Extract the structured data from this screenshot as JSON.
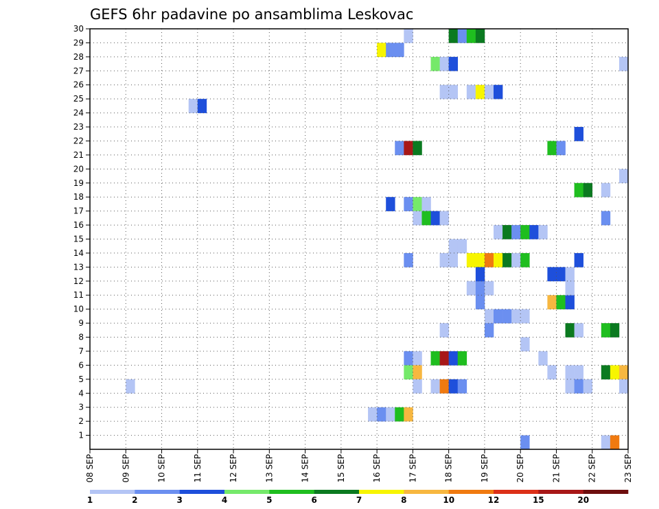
{
  "chart_data": {
    "type": "heatmap",
    "title": "GEFS 6hr padavine po ansamblima Leskovac",
    "xlabel": "",
    "ylabel": "",
    "x_tick_labels": [
      "08 SEP",
      "09 SEP",
      "10 SEP",
      "11 SEP",
      "12 SEP",
      "13 SEP",
      "14 SEP",
      "15 SEP",
      "16 SEP",
      "17 SEP",
      "18 SEP",
      "19 SEP",
      "20 SEP",
      "21 SEP",
      "22 SEP",
      "23 SEP"
    ],
    "x_unit": "6-hour steps from 08 SEP",
    "y_tick_labels": [
      "1",
      "2",
      "3",
      "4",
      "5",
      "6",
      "7",
      "8",
      "9",
      "10",
      "11",
      "12",
      "13",
      "14",
      "15",
      "16",
      "17",
      "18",
      "19",
      "20",
      "21",
      "22",
      "23",
      "24",
      "25",
      "26",
      "27",
      "28",
      "29",
      "30"
    ],
    "ylim": [
      0,
      30
    ],
    "grid": true,
    "colorbar": {
      "labels": [
        "1",
        "2",
        "3",
        "4",
        "5",
        "6",
        "7",
        "8",
        "10",
        "12",
        "15",
        "20"
      ],
      "colors": [
        "#b4c5f5",
        "#6b8ff0",
        "#1e4fdb",
        "#75e96a",
        "#1fbe1f",
        "#0b7a20",
        "#f7f500",
        "#f7b740",
        "#f07a10",
        "#dc3018",
        "#a81818",
        "#6e0e0e"
      ]
    },
    "cells": [
      {
        "t": 4,
        "m": 4,
        "c": 0
      },
      {
        "t": 11,
        "m": 24,
        "c": 0
      },
      {
        "t": 12,
        "m": 24,
        "c": 2
      },
      {
        "t": 31,
        "m": 2,
        "c": 0
      },
      {
        "t": 32,
        "m": 2,
        "c": 1
      },
      {
        "t": 33,
        "m": 2,
        "c": 0
      },
      {
        "t": 34,
        "m": 2,
        "c": 4
      },
      {
        "t": 35,
        "m": 2,
        "c": 7
      },
      {
        "t": 32,
        "m": 28,
        "c": 6
      },
      {
        "t": 33,
        "m": 28,
        "c": 1
      },
      {
        "t": 34,
        "m": 28,
        "c": 1
      },
      {
        "t": 33,
        "m": 17,
        "c": 2
      },
      {
        "t": 34,
        "m": 21,
        "c": 1
      },
      {
        "t": 35,
        "m": 21,
        "c": 10
      },
      {
        "t": 36,
        "m": 21,
        "c": 5
      },
      {
        "t": 35,
        "m": 29,
        "c": 0
      },
      {
        "t": 35,
        "m": 17,
        "c": 1
      },
      {
        "t": 36,
        "m": 17,
        "c": 3
      },
      {
        "t": 37,
        "m": 17,
        "c": 0
      },
      {
        "t": 36,
        "m": 16,
        "c": 0
      },
      {
        "t": 37,
        "m": 16,
        "c": 4
      },
      {
        "t": 38,
        "m": 16,
        "c": 2
      },
      {
        "t": 39,
        "m": 16,
        "c": 0
      },
      {
        "t": 35,
        "m": 13,
        "c": 1
      },
      {
        "t": 35,
        "m": 6,
        "c": 1
      },
      {
        "t": 36,
        "m": 6,
        "c": 0
      },
      {
        "t": 35,
        "m": 5,
        "c": 3
      },
      {
        "t": 36,
        "m": 5,
        "c": 7
      },
      {
        "t": 36,
        "m": 4,
        "c": 0
      },
      {
        "t": 38,
        "m": 27,
        "c": 3
      },
      {
        "t": 39,
        "m": 27,
        "c": 0
      },
      {
        "t": 40,
        "m": 27,
        "c": 2
      },
      {
        "t": 39,
        "m": 25,
        "c": 0
      },
      {
        "t": 40,
        "m": 25,
        "c": 0
      },
      {
        "t": 40,
        "m": 14,
        "c": 0
      },
      {
        "t": 41,
        "m": 14,
        "c": 0
      },
      {
        "t": 39,
        "m": 13,
        "c": 0
      },
      {
        "t": 40,
        "m": 13,
        "c": 0
      },
      {
        "t": 38,
        "m": 6,
        "c": 4
      },
      {
        "t": 39,
        "m": 6,
        "c": 10
      },
      {
        "t": 40,
        "m": 6,
        "c": 2
      },
      {
        "t": 41,
        "m": 6,
        "c": 4
      },
      {
        "t": 38,
        "m": 4,
        "c": 0
      },
      {
        "t": 39,
        "m": 4,
        "c": 8
      },
      {
        "t": 40,
        "m": 4,
        "c": 2
      },
      {
        "t": 41,
        "m": 4,
        "c": 1
      },
      {
        "t": 39,
        "m": 8,
        "c": 0
      },
      {
        "t": 40,
        "m": 29,
        "c": 5
      },
      {
        "t": 41,
        "m": 29,
        "c": 1
      },
      {
        "t": 42,
        "m": 29,
        "c": 4
      },
      {
        "t": 43,
        "m": 29,
        "c": 5
      },
      {
        "t": 42,
        "m": 25,
        "c": 0
      },
      {
        "t": 43,
        "m": 25,
        "c": 6
      },
      {
        "t": 44,
        "m": 25,
        "c": 0
      },
      {
        "t": 45,
        "m": 25,
        "c": 2
      },
      {
        "t": 42,
        "m": 13,
        "c": 6
      },
      {
        "t": 43,
        "m": 13,
        "c": 6
      },
      {
        "t": 44,
        "m": 13,
        "c": 8
      },
      {
        "t": 45,
        "m": 13,
        "c": 6
      },
      {
        "t": 46,
        "m": 13,
        "c": 5
      },
      {
        "t": 47,
        "m": 13,
        "c": 0
      },
      {
        "t": 48,
        "m": 13,
        "c": 4
      },
      {
        "t": 42,
        "m": 11,
        "c": 0
      },
      {
        "t": 43,
        "m": 11,
        "c": 1
      },
      {
        "t": 44,
        "m": 11,
        "c": 0
      },
      {
        "t": 43,
        "m": 12,
        "c": 2
      },
      {
        "t": 43,
        "m": 10,
        "c": 1
      },
      {
        "t": 44,
        "m": 9,
        "c": 0
      },
      {
        "t": 45,
        "m": 9,
        "c": 1
      },
      {
        "t": 46,
        "m": 9,
        "c": 1
      },
      {
        "t": 47,
        "m": 9,
        "c": 0
      },
      {
        "t": 48,
        "m": 9,
        "c": 0
      },
      {
        "t": 44,
        "m": 8,
        "c": 1
      },
      {
        "t": 45,
        "m": 15,
        "c": 0
      },
      {
        "t": 46,
        "m": 15,
        "c": 5
      },
      {
        "t": 47,
        "m": 15,
        "c": 1
      },
      {
        "t": 48,
        "m": 15,
        "c": 4
      },
      {
        "t": 49,
        "m": 15,
        "c": 2
      },
      {
        "t": 50,
        "m": 15,
        "c": 0
      },
      {
        "t": 48,
        "m": 7,
        "c": 0
      },
      {
        "t": 48,
        "m": 0,
        "c": 1
      },
      {
        "t": 50,
        "m": 6,
        "c": 0
      },
      {
        "t": 51,
        "m": 5,
        "c": 0
      },
      {
        "t": 51,
        "m": 21,
        "c": 4
      },
      {
        "t": 52,
        "m": 21,
        "c": 1
      },
      {
        "t": 51,
        "m": 12,
        "c": 2
      },
      {
        "t": 52,
        "m": 12,
        "c": 2
      },
      {
        "t": 53,
        "m": 12,
        "c": 0
      },
      {
        "t": 51,
        "m": 10,
        "c": 7
      },
      {
        "t": 52,
        "m": 10,
        "c": 4
      },
      {
        "t": 53,
        "m": 10,
        "c": 2
      },
      {
        "t": 53,
        "m": 11,
        "c": 0
      },
      {
        "t": 53,
        "m": 8,
        "c": 5
      },
      {
        "t": 53,
        "m": 5,
        "c": 0
      },
      {
        "t": 54,
        "m": 5,
        "c": 0
      },
      {
        "t": 53,
        "m": 4,
        "c": 0
      },
      {
        "t": 54,
        "m": 4,
        "c": 1
      },
      {
        "t": 55,
        "m": 4,
        "c": 0
      },
      {
        "t": 54,
        "m": 22,
        "c": 2
      },
      {
        "t": 54,
        "m": 18,
        "c": 4
      },
      {
        "t": 55,
        "m": 18,
        "c": 5
      },
      {
        "t": 54,
        "m": 13,
        "c": 2
      },
      {
        "t": 54,
        "m": 8,
        "c": 0
      },
      {
        "t": 57,
        "m": 18,
        "c": 0
      },
      {
        "t": 57,
        "m": 16,
        "c": 1
      },
      {
        "t": 57,
        "m": 8,
        "c": 4
      },
      {
        "t": 58,
        "m": 8,
        "c": 5
      },
      {
        "t": 57,
        "m": 5,
        "c": 5
      },
      {
        "t": 58,
        "m": 5,
        "c": 6
      },
      {
        "t": 59,
        "m": 5,
        "c": 7
      },
      {
        "t": 57,
        "m": 0,
        "c": 0
      },
      {
        "t": 58,
        "m": 0,
        "c": 8
      },
      {
        "t": 59,
        "m": 27,
        "c": 0
      },
      {
        "t": 59,
        "m": 19,
        "c": 0
      },
      {
        "t": 59,
        "m": 4,
        "c": 0
      }
    ]
  }
}
